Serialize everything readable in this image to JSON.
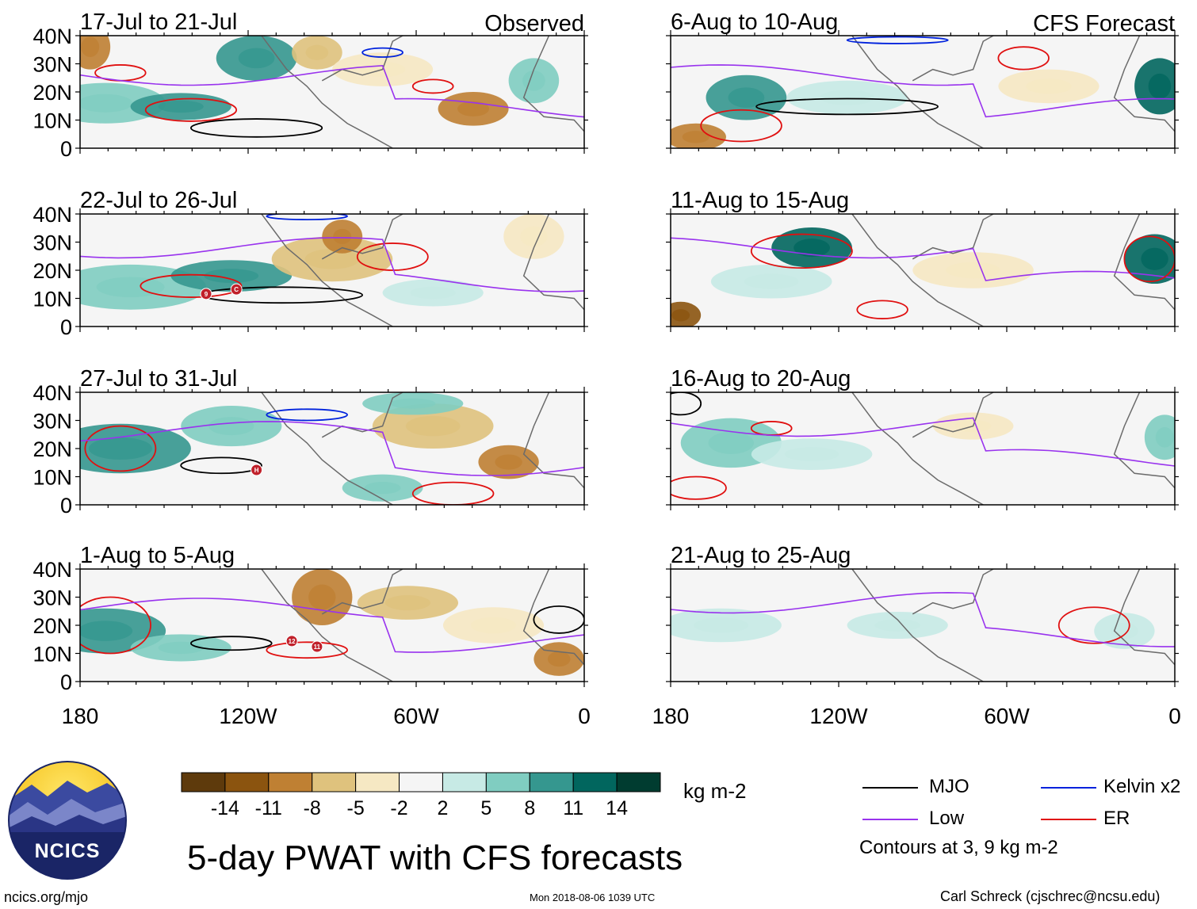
{
  "header": {
    "observed_label": "Observed",
    "forecast_label": "CFS Forecast"
  },
  "panels": [
    {
      "period": "17-Jul to 21-Jul",
      "kind": "observed"
    },
    {
      "period": "22-Jul to 26-Jul",
      "kind": "observed"
    },
    {
      "period": "27-Jul to 31-Jul",
      "kind": "observed"
    },
    {
      "period": "1-Aug to 5-Aug",
      "kind": "observed"
    },
    {
      "period": "6-Aug to 10-Aug",
      "kind": "forecast"
    },
    {
      "period": "11-Aug to 15-Aug",
      "kind": "forecast"
    },
    {
      "period": "16-Aug to 20-Aug",
      "kind": "forecast"
    },
    {
      "period": "21-Aug to 25-Aug",
      "kind": "forecast"
    }
  ],
  "axes": {
    "lat_labels": [
      "40N",
      "30N",
      "20N",
      "10N",
      "0"
    ],
    "lon_labels": [
      "180",
      "120W",
      "60W",
      "0"
    ]
  },
  "storm_markers": [
    {
      "panel": 1,
      "label": "9"
    },
    {
      "panel": 1,
      "label": "C"
    },
    {
      "panel": 2,
      "label": "H"
    },
    {
      "panel": 3,
      "label": "12"
    },
    {
      "panel": 3,
      "label": "11"
    }
  ],
  "colorbar": {
    "units": "kg m-2",
    "tick_labels": [
      "-14",
      "-11",
      "-8",
      "-5",
      "-2",
      "2",
      "5",
      "8",
      "11",
      "14"
    ],
    "colors": [
      "#5e3a0c",
      "#8b540f",
      "#bf8033",
      "#dfc27d",
      "#f6e8c3",
      "#f5f5f5",
      "#c7eae5",
      "#80cdc1",
      "#35978f",
      "#01665e",
      "#003c30"
    ]
  },
  "legend": {
    "items": [
      {
        "label": "MJO",
        "color": "#000000"
      },
      {
        "label": "Kelvin x2",
        "color": "#0022dd"
      },
      {
        "label": "Low",
        "color": "#9933ee"
      },
      {
        "label": "ER",
        "color": "#e01010"
      }
    ],
    "contour_note": "Contours at 3, 9 kg m-2"
  },
  "title": "5-day PWAT with CFS forecasts",
  "logo": {
    "text": "NCICS"
  },
  "footer": {
    "url": "ncics.org/mjo",
    "timestamp": "Mon 2018-08-06 1039 UTC",
    "credit": "Carl Schreck (cjschrec@ncsu.edu)"
  }
}
